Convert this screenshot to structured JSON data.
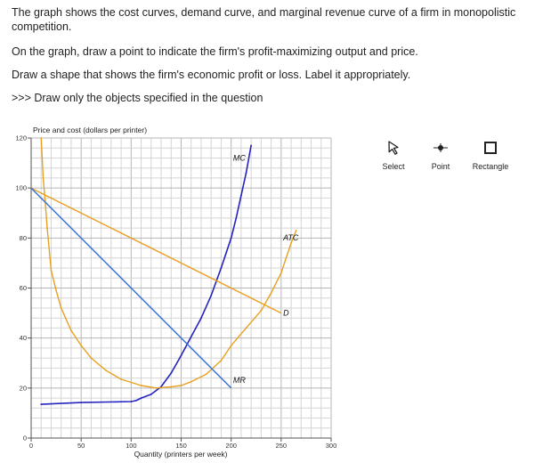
{
  "question": {
    "line1": "The graph shows the cost curves, demand curve, and marginal revenue curve of a firm in monopolistic competition.",
    "line2": "On the graph, draw a point to indicate the firm's profit-maximizing output and price.",
    "line3": "Draw a shape that shows the firm's economic profit or loss. Label it appropriately.",
    "line4": ">>> Draw only the objects specified in the question"
  },
  "tools": [
    {
      "label": "Select",
      "icon": "cursor-icon"
    },
    {
      "label": "Point",
      "icon": "point-icon"
    },
    {
      "label": "Rectangle",
      "icon": "rectangle-icon"
    }
  ],
  "chart_data": {
    "type": "line",
    "ylabel": "Price and cost (dollars per printer)",
    "xlabel": "Quantity (printers per week)",
    "xlim": [
      0,
      300
    ],
    "ylim": [
      0,
      120
    ],
    "x_ticks": [
      0,
      50,
      100,
      150,
      200,
      250,
      300
    ],
    "y_ticks": [
      0,
      20,
      40,
      60,
      80,
      100,
      120
    ],
    "grid": true,
    "colors": {
      "cost": "#e8a020",
      "demand": "#e8a020",
      "revenue": "#2f6fd6",
      "mc": "#2424c0"
    },
    "series": [
      {
        "name": "MC",
        "color": "#2424c0",
        "points": [
          [
            10,
            13.5
          ],
          [
            50,
            14.2
          ],
          [
            100,
            14.6
          ],
          [
            105,
            15
          ],
          [
            110,
            16
          ],
          [
            120,
            17.5
          ],
          [
            125,
            19
          ],
          [
            130,
            20.5
          ],
          [
            140,
            26
          ],
          [
            150,
            33
          ],
          [
            160,
            40.5
          ],
          [
            170,
            48
          ],
          [
            180,
            57
          ],
          [
            190,
            68
          ],
          [
            200,
            80
          ],
          [
            205,
            88
          ],
          [
            210,
            97
          ],
          [
            215,
            106
          ],
          [
            220,
            117
          ]
        ]
      },
      {
        "name": "ATC",
        "color": "#e8a020",
        "points": [
          [
            10,
            120
          ],
          [
            11,
            112
          ],
          [
            12,
            104
          ],
          [
            14,
            95
          ],
          [
            16,
            84
          ],
          [
            20,
            67
          ],
          [
            25,
            59
          ],
          [
            30,
            52
          ],
          [
            40,
            43
          ],
          [
            50,
            37
          ],
          [
            60,
            32
          ],
          [
            75,
            27
          ],
          [
            90,
            23.5
          ],
          [
            110,
            21
          ],
          [
            125,
            20
          ],
          [
            140,
            20.5
          ],
          [
            150,
            21
          ],
          [
            160,
            22.5
          ],
          [
            175,
            25.5
          ],
          [
            190,
            31
          ],
          [
            200,
            37
          ],
          [
            215,
            44
          ],
          [
            230,
            51
          ],
          [
            240,
            58
          ],
          [
            250,
            66
          ],
          [
            260,
            78
          ],
          [
            265,
            83
          ]
        ]
      },
      {
        "name": "D",
        "color": "#e8a020",
        "points": [
          [
            0,
            100
          ],
          [
            250,
            50
          ]
        ]
      },
      {
        "name": "MR",
        "color": "#2f6fd6",
        "points": [
          [
            0,
            100
          ],
          [
            200,
            20
          ]
        ]
      }
    ],
    "labels": [
      {
        "text": "MC",
        "x": 202,
        "y": 111
      },
      {
        "text": "ATC",
        "x": 252,
        "y": 79
      },
      {
        "text": "D",
        "x": 252,
        "y": 49
      },
      {
        "text": "MR",
        "x": 202,
        "y": 22
      }
    ]
  }
}
